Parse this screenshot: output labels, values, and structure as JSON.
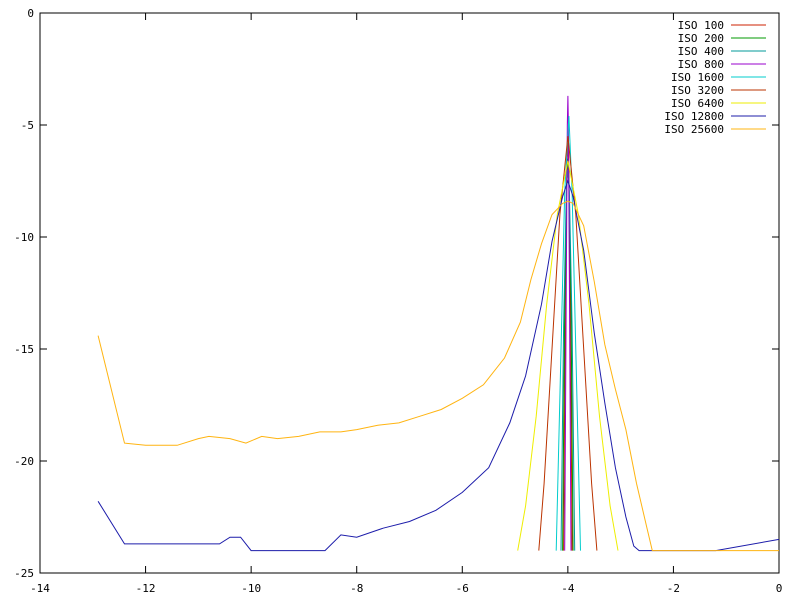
{
  "chart_data": {
    "type": "line",
    "title": "",
    "xlabel": "",
    "ylabel": "",
    "xlim": [
      -14,
      0
    ],
    "ylim": [
      -25,
      0
    ],
    "grid": false,
    "legend_position": "top-right",
    "x_ticks": [
      {
        "value": -14,
        "label": "-14"
      },
      {
        "value": -12,
        "label": "-12"
      },
      {
        "value": -10,
        "label": "-10"
      },
      {
        "value": -8,
        "label": "-8"
      },
      {
        "value": -6,
        "label": "-6"
      },
      {
        "value": -4,
        "label": "-4"
      },
      {
        "value": -2,
        "label": "-2"
      },
      {
        "value": 0,
        "label": "0"
      }
    ],
    "y_ticks": [
      {
        "value": 0,
        "label": "0"
      },
      {
        "value": -5,
        "label": "-5"
      },
      {
        "value": -10,
        "label": "-10"
      },
      {
        "value": -15,
        "label": "-15"
      },
      {
        "value": -20,
        "label": "-20"
      },
      {
        "value": -25,
        "label": "-25"
      }
    ],
    "series": [
      {
        "name": "ISO 100",
        "color": "#cc2200",
        "points": [
          [
            -4.08,
            -24
          ],
          [
            -4.05,
            -14
          ],
          [
            -4.02,
            -7
          ],
          [
            -4.0,
            -5.8
          ],
          [
            -3.98,
            -7
          ],
          [
            -3.95,
            -14
          ],
          [
            -3.92,
            -24
          ]
        ]
      },
      {
        "name": "ISO 200",
        "color": "#009900",
        "points": [
          [
            -4.1,
            -24
          ],
          [
            -4.06,
            -13
          ],
          [
            -4.02,
            -7.5
          ],
          [
            -4.0,
            -6.5
          ],
          [
            -3.98,
            -7.5
          ],
          [
            -3.94,
            -13
          ],
          [
            -3.9,
            -24
          ]
        ]
      },
      {
        "name": "ISO 400",
        "color": "#009999",
        "points": [
          [
            -4.13,
            -24
          ],
          [
            -4.08,
            -14
          ],
          [
            -4.03,
            -8
          ],
          [
            -4.0,
            -7
          ],
          [
            -3.97,
            -8
          ],
          [
            -3.92,
            -14
          ],
          [
            -3.87,
            -24
          ]
        ]
      },
      {
        "name": "ISO 800",
        "color": "#9900cc",
        "points": [
          [
            -4.06,
            -24
          ],
          [
            -4.03,
            -12
          ],
          [
            -4.01,
            -5
          ],
          [
            -4.0,
            -3.7
          ],
          [
            -3.99,
            -5
          ],
          [
            -3.97,
            -12
          ],
          [
            -3.94,
            -24
          ]
        ]
      },
      {
        "name": "ISO 1600",
        "color": "#00cccc",
        "points": [
          [
            -4.22,
            -24
          ],
          [
            -4.14,
            -16
          ],
          [
            -4.06,
            -8
          ],
          [
            -3.98,
            -4.6
          ],
          [
            -3.92,
            -8
          ],
          [
            -3.84,
            -16
          ],
          [
            -3.76,
            -24
          ]
        ]
      },
      {
        "name": "ISO 3200",
        "color": "#bb3300",
        "points": [
          [
            -4.55,
            -24
          ],
          [
            -4.45,
            -21
          ],
          [
            -4.3,
            -15
          ],
          [
            -4.15,
            -9
          ],
          [
            -4.0,
            -5.5
          ],
          [
            -3.85,
            -9
          ],
          [
            -3.7,
            -15
          ],
          [
            -3.55,
            -21
          ],
          [
            -3.45,
            -24
          ]
        ]
      },
      {
        "name": "ISO 6400",
        "color": "#eeee00",
        "points": [
          [
            -4.95,
            -24
          ],
          [
            -4.8,
            -22
          ],
          [
            -4.6,
            -18
          ],
          [
            -4.4,
            -13
          ],
          [
            -4.2,
            -9
          ],
          [
            -4.0,
            -6.6
          ],
          [
            -3.8,
            -9
          ],
          [
            -3.6,
            -13
          ],
          [
            -3.4,
            -18
          ],
          [
            -3.2,
            -22
          ],
          [
            -3.05,
            -24
          ]
        ]
      },
      {
        "name": "ISO 12800",
        "color": "#1c1caa",
        "points": [
          [
            -12.9,
            -21.8
          ],
          [
            -12.4,
            -23.7
          ],
          [
            -10.6,
            -23.7
          ],
          [
            -10.4,
            -23.4
          ],
          [
            -10.2,
            -23.4
          ],
          [
            -10.0,
            -24
          ],
          [
            -8.6,
            -24
          ],
          [
            -8.3,
            -23.3
          ],
          [
            -8.0,
            -23.4
          ],
          [
            -7.5,
            -23.0
          ],
          [
            -7.0,
            -22.7
          ],
          [
            -6.5,
            -22.2
          ],
          [
            -6.0,
            -21.4
          ],
          [
            -5.5,
            -20.3
          ],
          [
            -5.1,
            -18.3
          ],
          [
            -4.8,
            -16.2
          ],
          [
            -4.5,
            -13.0
          ],
          [
            -4.3,
            -10.2
          ],
          [
            -4.1,
            -8.2
          ],
          [
            -4.0,
            -7.5
          ],
          [
            -3.9,
            -8.2
          ],
          [
            -3.7,
            -10.6
          ],
          [
            -3.5,
            -14.3
          ],
          [
            -3.3,
            -17.4
          ],
          [
            -3.1,
            -20.3
          ],
          [
            -2.9,
            -22.5
          ],
          [
            -2.75,
            -23.8
          ],
          [
            -2.65,
            -24
          ],
          [
            -1.2,
            -24
          ],
          [
            0,
            -23.5
          ]
        ]
      },
      {
        "name": "ISO 25600",
        "color": "#ffb411",
        "points": [
          [
            -12.9,
            -14.4
          ],
          [
            -12.4,
            -19.2
          ],
          [
            -12.0,
            -19.3
          ],
          [
            -11.4,
            -19.3
          ],
          [
            -11.0,
            -19.0
          ],
          [
            -10.8,
            -18.9
          ],
          [
            -10.4,
            -19.0
          ],
          [
            -10.1,
            -19.2
          ],
          [
            -9.8,
            -18.9
          ],
          [
            -9.5,
            -19.0
          ],
          [
            -9.1,
            -18.9
          ],
          [
            -8.7,
            -18.7
          ],
          [
            -8.3,
            -18.7
          ],
          [
            -8.0,
            -18.6
          ],
          [
            -7.6,
            -18.4
          ],
          [
            -7.2,
            -18.3
          ],
          [
            -6.8,
            -18.0
          ],
          [
            -6.4,
            -17.7
          ],
          [
            -6.0,
            -17.2
          ],
          [
            -5.6,
            -16.6
          ],
          [
            -5.2,
            -15.4
          ],
          [
            -4.9,
            -13.8
          ],
          [
            -4.7,
            -11.9
          ],
          [
            -4.5,
            -10.3
          ],
          [
            -4.3,
            -9.0
          ],
          [
            -4.1,
            -8.5
          ],
          [
            -4.0,
            -8.4
          ],
          [
            -3.9,
            -8.5
          ],
          [
            -3.7,
            -9.5
          ],
          [
            -3.5,
            -12.0
          ],
          [
            -3.3,
            -14.8
          ],
          [
            -3.1,
            -16.8
          ],
          [
            -2.9,
            -18.6
          ],
          [
            -2.7,
            -21.0
          ],
          [
            -2.5,
            -23.0
          ],
          [
            -2.4,
            -24
          ],
          [
            -1.0,
            -24
          ],
          [
            0,
            -24
          ]
        ]
      }
    ]
  }
}
